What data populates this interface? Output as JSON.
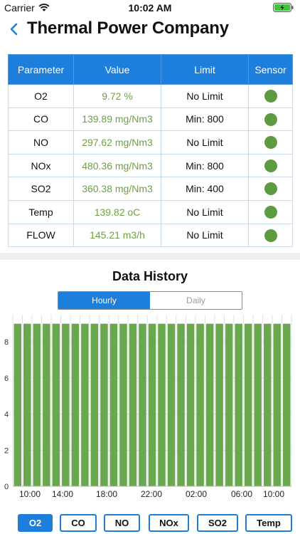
{
  "status": {
    "carrier": "Carrier",
    "time": "10:02 AM"
  },
  "nav": {
    "title": "Thermal Power Company"
  },
  "table": {
    "headers": [
      "Parameter",
      "Value",
      "Limit",
      "Sensor"
    ],
    "rows": [
      {
        "param": "O2",
        "value": "9.72 %",
        "limit": "No Limit",
        "sensor": "online"
      },
      {
        "param": "CO",
        "value": "139.89 mg/Nm3",
        "limit": "Min: 800",
        "sensor": "online"
      },
      {
        "param": "NO",
        "value": "297.62 mg/Nm3",
        "limit": "No Limit",
        "sensor": "online"
      },
      {
        "param": "NOx",
        "value": "480.36 mg/Nm3",
        "limit": "Min: 800",
        "sensor": "online"
      },
      {
        "param": "SO2",
        "value": "360.38 mg/Nm3",
        "limit": "Min: 400",
        "sensor": "online"
      },
      {
        "param": "Temp",
        "value": "139.82 oC",
        "limit": "No Limit",
        "sensor": "online"
      },
      {
        "param": "FLOW",
        "value": "145.21 m3/h",
        "limit": "No Limit",
        "sensor": "online"
      }
    ],
    "sensor_color": "#5d9b40",
    "header_color": "#1d7fdb"
  },
  "history": {
    "title": "Data History",
    "segments": [
      "Hourly",
      "Daily"
    ],
    "active_segment": "Hourly"
  },
  "chart_data": {
    "type": "bar",
    "values": [
      9,
      9,
      9,
      9,
      9,
      9,
      9,
      9,
      9,
      9,
      9,
      9,
      9,
      9,
      9,
      9,
      9,
      9,
      9,
      9,
      9,
      9,
      9,
      9,
      9,
      9,
      9,
      9,
      9
    ],
    "x_tick_labels": [
      "10:00",
      "14:00",
      "18:00",
      "22:00",
      "02:00",
      "06:00",
      "10:00"
    ],
    "y_ticks": [
      0,
      2,
      4,
      6,
      8
    ],
    "ylim": [
      0,
      9.5
    ],
    "bar_color": "#6aa84f",
    "grid": true
  },
  "params": {
    "buttons": [
      "O2",
      "CO",
      "NO",
      "NOx",
      "SO2",
      "Temp"
    ],
    "active": "O2"
  }
}
